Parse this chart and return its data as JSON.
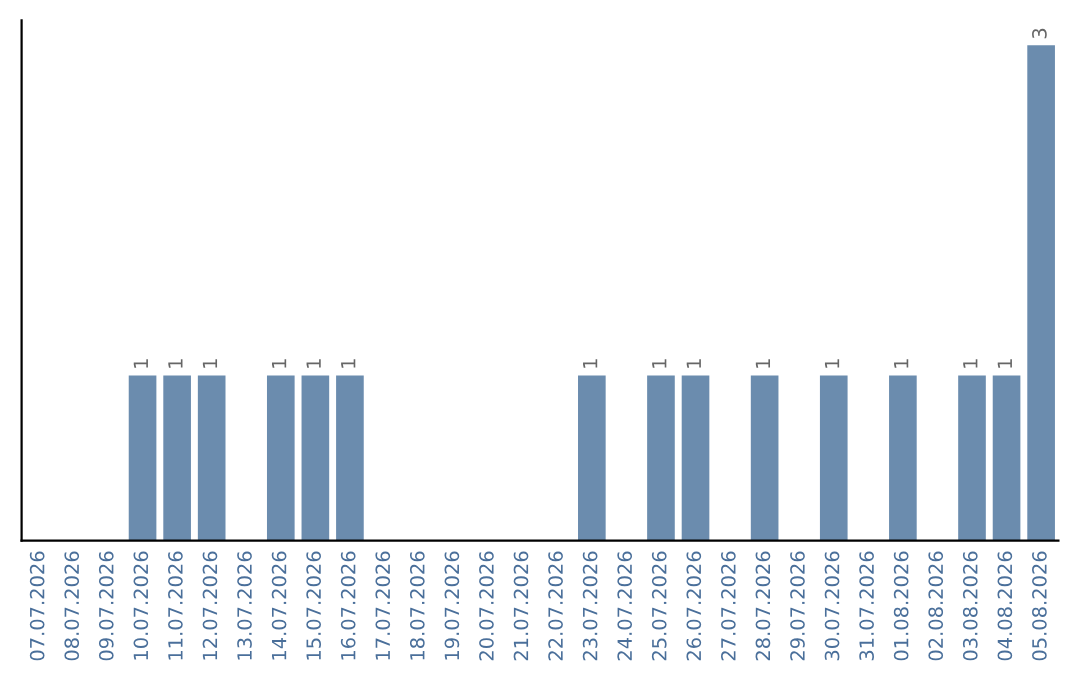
{
  "chart_data": {
    "type": "bar",
    "categories": [
      "07.07.2026",
      "08.07.2026",
      "09.07.2026",
      "10.07.2026",
      "11.07.2026",
      "12.07.2026",
      "13.07.2026",
      "14.07.2026",
      "15.07.2026",
      "16.07.2026",
      "17.07.2026",
      "18.07.2026",
      "19.07.2026",
      "20.07.2026",
      "21.07.2026",
      "22.07.2026",
      "23.07.2026",
      "24.07.2026",
      "25.07.2026",
      "26.07.2026",
      "27.07.2026",
      "28.07.2026",
      "29.07.2026",
      "30.07.2026",
      "31.07.2026",
      "01.08.2026",
      "02.08.2026",
      "03.08.2026",
      "04.08.2026",
      "05.08.2026"
    ],
    "values": [
      0,
      0,
      0,
      1,
      1,
      1,
      0,
      1,
      1,
      1,
      0,
      0,
      0,
      0,
      0,
      0,
      1,
      0,
      1,
      1,
      0,
      1,
      0,
      1,
      0,
      1,
      0,
      1,
      1,
      3
    ],
    "value_labels": [
      null,
      null,
      null,
      "1",
      "1",
      "1",
      null,
      "1",
      "1",
      "1",
      null,
      null,
      null,
      null,
      null,
      null,
      "1",
      null,
      "1",
      "1",
      null,
      "1",
      null,
      "1",
      null,
      "1",
      null,
      "1",
      "1",
      "3"
    ],
    "color": "#6b8cae",
    "tick_labels": "x",
    "grid": false,
    "legend": false
  }
}
